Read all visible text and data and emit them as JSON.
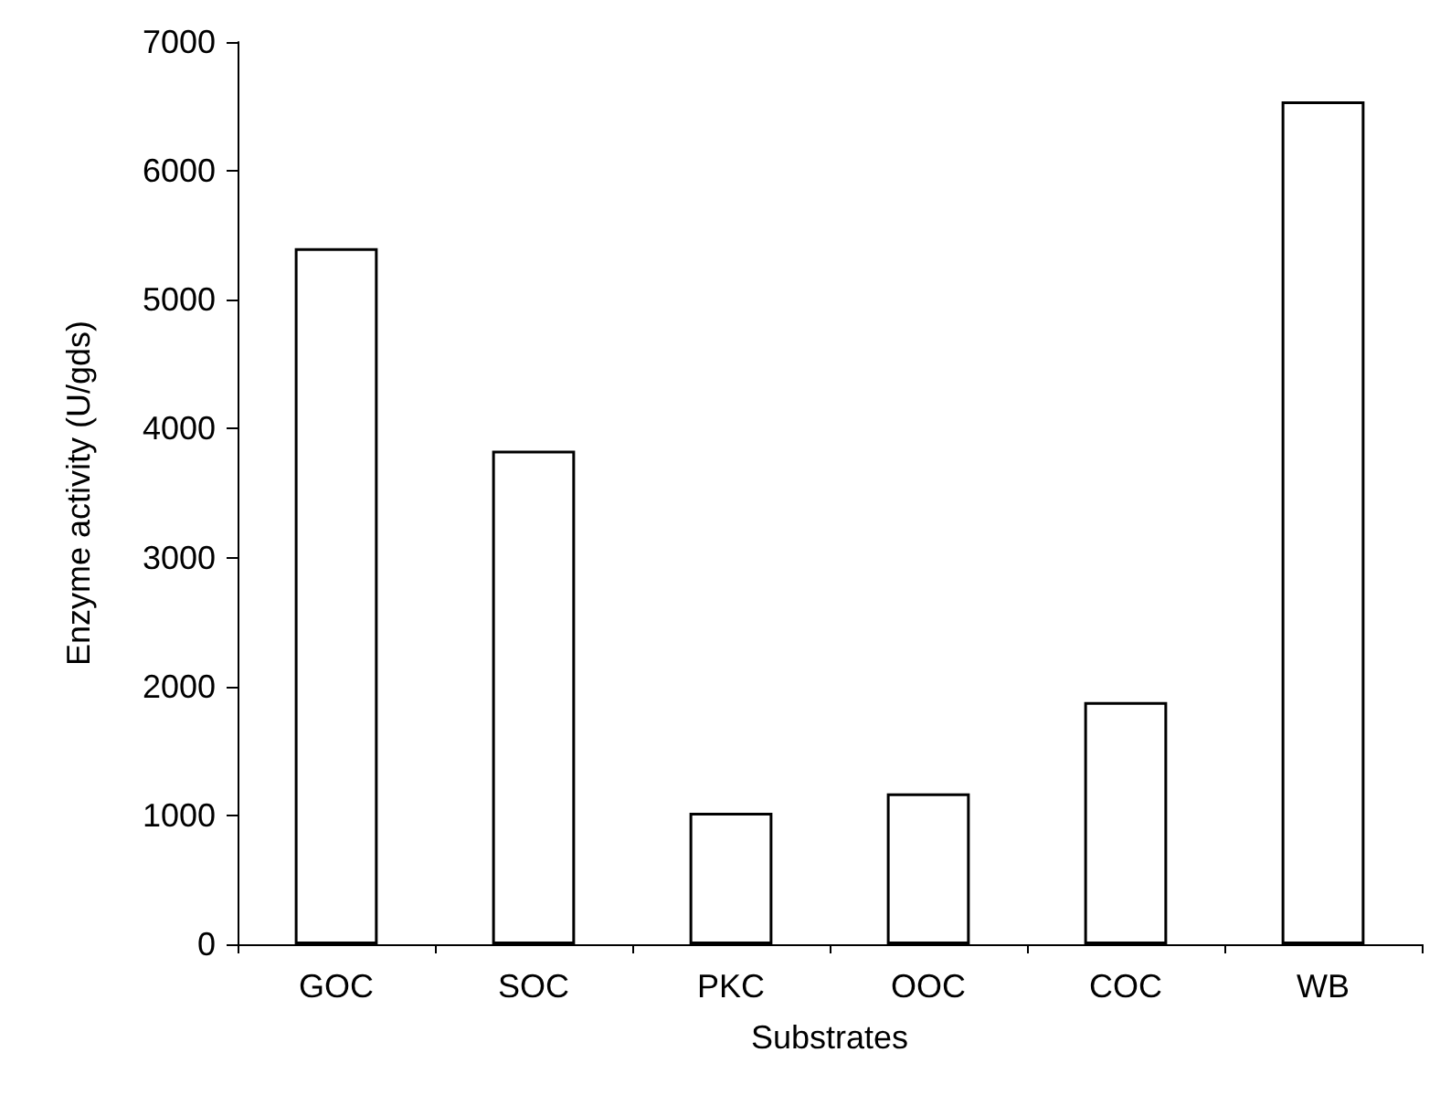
{
  "chart_data": {
    "type": "bar",
    "xlabel": "Substrates",
    "ylabel": "Enzyme activity (U/gds)",
    "categories": [
      "GOC",
      "SOC",
      "PKC",
      "OOC",
      "COC",
      "WB"
    ],
    "values": [
      5400,
      3830,
      1020,
      1170,
      1880,
      6540
    ],
    "color": "#ffffff",
    "ylim": [
      0,
      7000
    ],
    "yticks": [
      0,
      1000,
      2000,
      3000,
      4000,
      5000,
      6000,
      7000
    ],
    "grid": false
  }
}
